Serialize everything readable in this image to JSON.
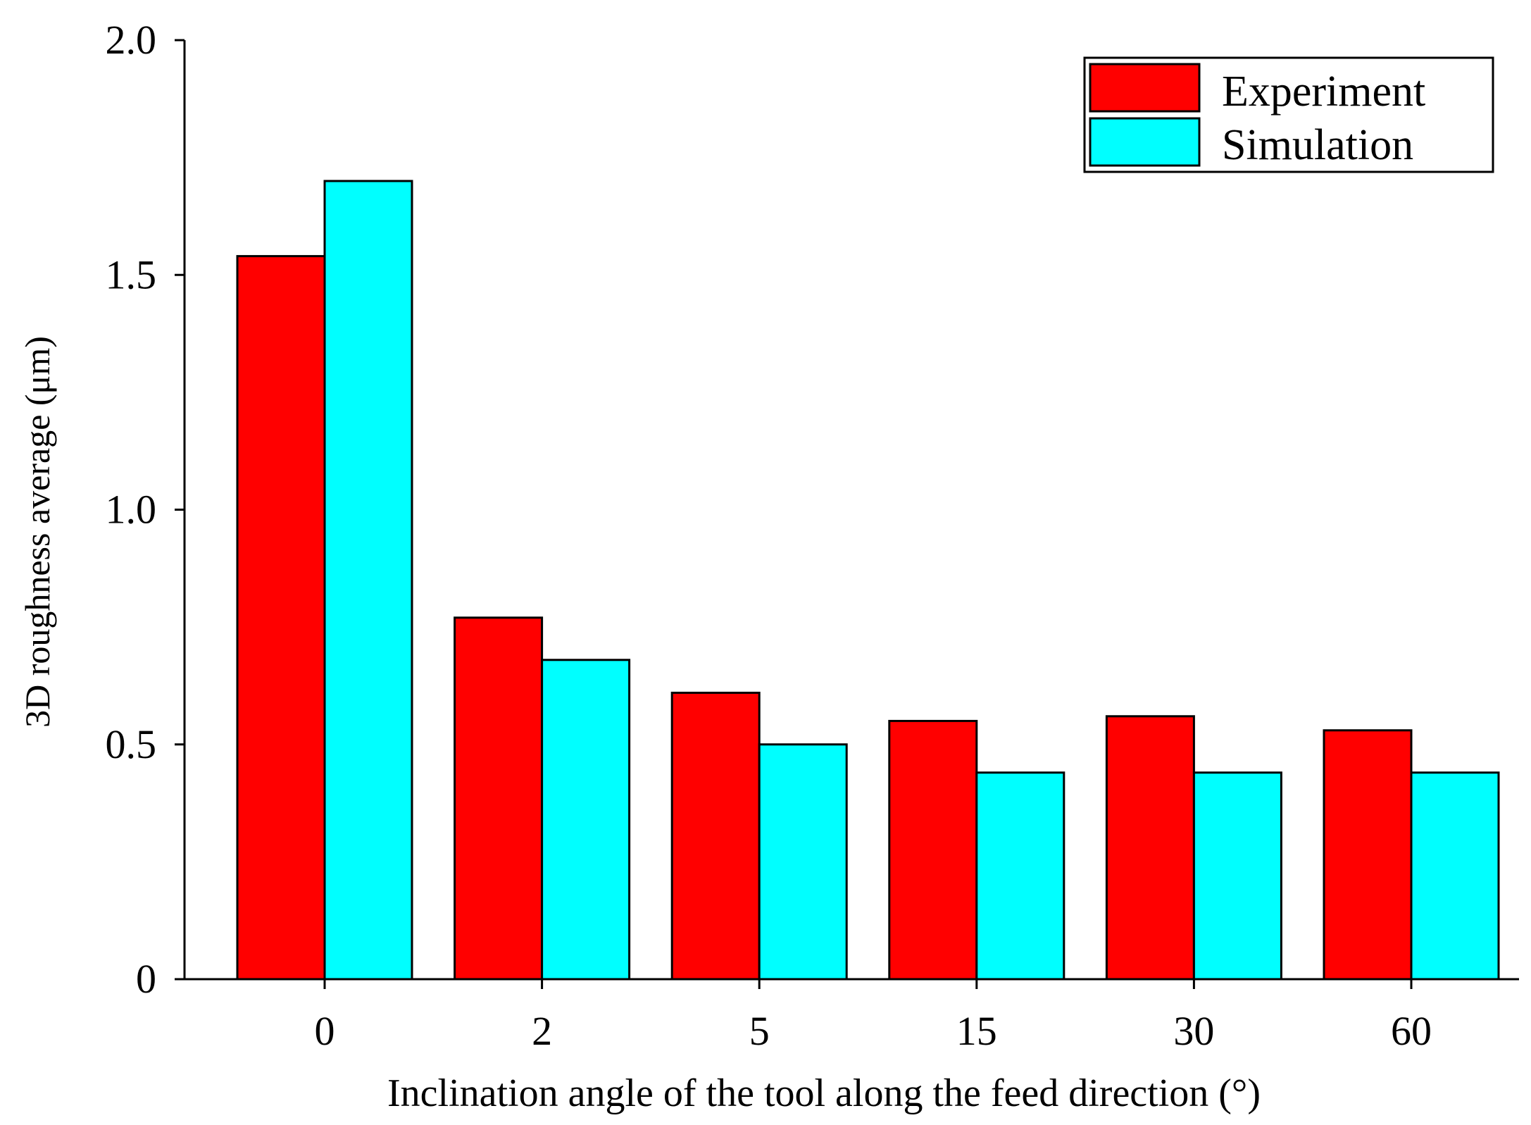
{
  "chart_data": {
    "type": "bar",
    "title": "",
    "xlabel": "Inclination angle of the tool along the feed direction (°)",
    "ylabel": "3D roughness average (μm)",
    "categories": [
      "0",
      "2",
      "5",
      "15",
      "30",
      "60"
    ],
    "series": [
      {
        "name": "Experiment",
        "color": "#ff0000",
        "values": [
          1.54,
          0.77,
          0.61,
          0.55,
          0.56,
          0.53
        ]
      },
      {
        "name": "Simulation",
        "color": "#00ffff",
        "values": [
          1.7,
          0.68,
          0.5,
          0.44,
          0.44,
          0.44
        ]
      }
    ],
    "ylim": [
      0,
      2.0
    ],
    "yticks": [
      0,
      0.5,
      1.0,
      1.5,
      2.0
    ],
    "ytick_labels": [
      "0",
      "0.5",
      "1.0",
      "1.5",
      "2.0"
    ],
    "grid": false,
    "legend_position": "top-right"
  }
}
